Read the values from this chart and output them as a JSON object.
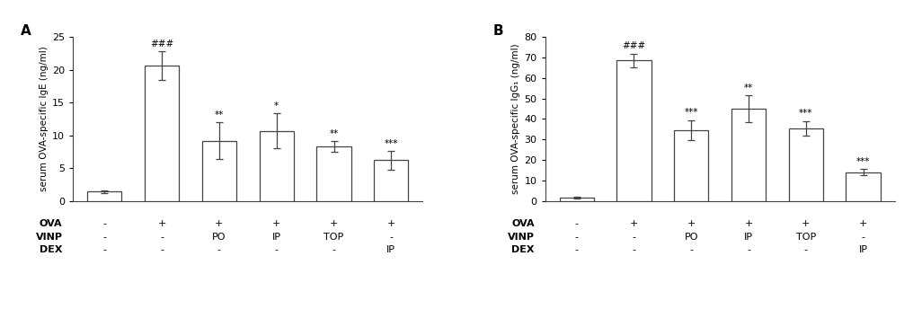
{
  "panel_A": {
    "label": "A",
    "ylabel": "serum OVA-specific IgE (ng/ml)",
    "ylim": [
      0,
      25
    ],
    "yticks": [
      0,
      5,
      10,
      15,
      20,
      25
    ],
    "bar_values": [
      1.4,
      20.6,
      9.2,
      10.7,
      8.3,
      6.2
    ],
    "bar_errors": [
      0.2,
      2.2,
      2.8,
      2.7,
      0.8,
      1.4
    ],
    "bar_color": "white",
    "bar_edgecolor": "#444444",
    "annotations": [
      "",
      "###",
      "**",
      "*",
      "**",
      "***"
    ],
    "ova_row": [
      "-",
      "+",
      "+",
      "+",
      "+",
      "+"
    ],
    "vinp_row": [
      "-",
      "-",
      "PO",
      "IP",
      "TOP",
      "-"
    ],
    "dex_row": [
      "-",
      "-",
      "-",
      "-",
      "-",
      "IP"
    ]
  },
  "panel_B": {
    "label": "B",
    "ylabel": "serum OVA-specific IgG₁ (ng/ml)",
    "ylim": [
      0,
      80
    ],
    "yticks": [
      0,
      10,
      20,
      30,
      40,
      50,
      60,
      70,
      80
    ],
    "bar_values": [
      1.5,
      68.5,
      34.5,
      45.0,
      35.5,
      14.0
    ],
    "bar_errors": [
      0.5,
      3.5,
      5.0,
      6.5,
      3.5,
      1.5
    ],
    "bar_color": "white",
    "bar_edgecolor": "#444444",
    "annotations": [
      "",
      "###",
      "***",
      "**",
      "***",
      "***"
    ],
    "ova_row": [
      "-",
      "+",
      "+",
      "+",
      "+",
      "+"
    ],
    "vinp_row": [
      "-",
      "-",
      "PO",
      "IP",
      "TOP",
      "-"
    ],
    "dex_row": [
      "-",
      "-",
      "-",
      "-",
      "-",
      "IP"
    ]
  },
  "bar_width": 0.6,
  "fontsize_ylabel": 7.5,
  "fontsize_annot": 7.5,
  "fontsize_tick": 8,
  "fontsize_row_label": 8,
  "fontsize_row_value": 8,
  "fontsize_panel_label": 11,
  "row_labels": [
    "OVA",
    "VINP",
    "DEX"
  ],
  "error_color": "#444444",
  "row_offsets_axes": [
    -0.14,
    -0.22,
    -0.3
  ]
}
